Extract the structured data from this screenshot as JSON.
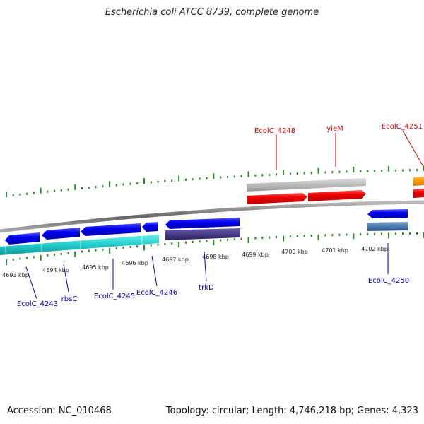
{
  "title": "Escherichia coli ATCC 8739, complete genome",
  "footer": {
    "accession": "Accession: NC_010468",
    "summary": "Topology: circular; Length: 4,746,218 bp; Genes: 4,323"
  },
  "kbp_labels": [
    "4693 kbp",
    "4694 kbp",
    "4695 kbp",
    "4696 kbp",
    "4697 kbp",
    "4698 kbp",
    "4699 kbp",
    "4700 kbp",
    "4701 kbp",
    "4702 kbp"
  ],
  "forward_genes": [
    {
      "name": "EcolC_4248",
      "color": "#cc0000"
    },
    {
      "name": "yieM",
      "color": "#cc0000"
    },
    {
      "name": "EcolC_4251",
      "color": "#cc0000"
    }
  ],
  "reverse_genes": [
    {
      "name": "EcolC_4243",
      "color": "#0000aa"
    },
    {
      "name": "rbsC",
      "color": "#0000aa"
    },
    {
      "name": "EcolC_4245",
      "color": "#0000aa"
    },
    {
      "name": "EcolC_4246",
      "color": "#0000aa"
    },
    {
      "name": "trkD",
      "color": "#0000aa"
    },
    {
      "name": "EcolC_4250",
      "color": "#0000aa"
    }
  ],
  "colors": {
    "cds_forward": "#ff0000",
    "cds_reverse": "#0000ee",
    "gene_forward": "#bbbbbb",
    "gene_reverse_cyan": "#22cccc",
    "gene_reverse_purple": "#4a3a8a",
    "gene_reverse_steel": "#4a7ab0",
    "orange_feature": "#ff9900",
    "ticks": "#228822",
    "backbone": "#888888"
  }
}
